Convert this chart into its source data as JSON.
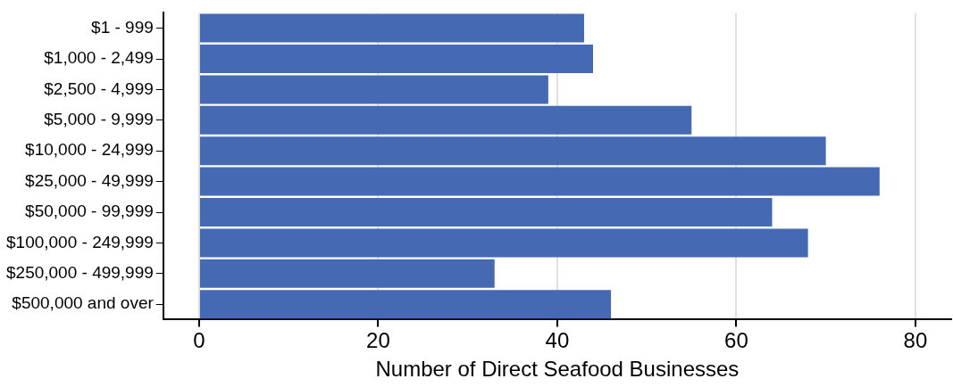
{
  "chart_data": {
    "type": "bar",
    "orientation": "horizontal",
    "xlabel": "Number of Direct Seafood Businesses",
    "categories": [
      "$1 - 999",
      "$1,000 - 2,499",
      "$2,500 - 4,999",
      "$5,000 - 9,999",
      "$10,000 - 24,999",
      "$25,000 - 49,999",
      "$50,000 - 99,999",
      "$100,000 - 249,999",
      "$250,000 - 499,999",
      "$500,000 and over"
    ],
    "values": [
      43,
      44,
      39,
      55,
      70,
      76,
      64,
      68,
      33,
      46
    ],
    "color": "#4569b2",
    "xlim": [
      -4,
      84
    ],
    "xticks": [
      0,
      20,
      40,
      60,
      80
    ],
    "grid": "x",
    "legend": false
  }
}
